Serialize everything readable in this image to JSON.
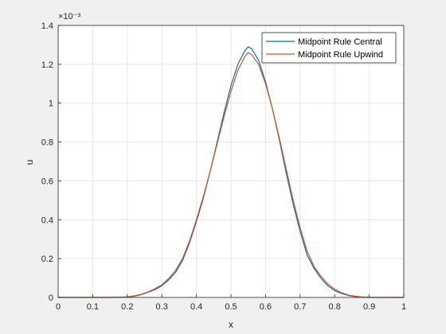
{
  "chart_data": {
    "type": "line",
    "title": "",
    "xlabel": "x",
    "ylabel": "u",
    "exponent_label": "×10⁻³",
    "xlim": [
      0,
      1
    ],
    "ylim": [
      0,
      1.4
    ],
    "y_scale_multiplier": 0.001,
    "grid": true,
    "legend_location": "top-right",
    "x_ticks": [
      "0",
      "0.1",
      "0.2",
      "0.3",
      "0.4",
      "0.5",
      "0.6",
      "0.7",
      "0.8",
      "0.9",
      "1"
    ],
    "y_ticks": [
      "0",
      "0.2",
      "0.4",
      "0.6",
      "0.8",
      "1",
      "1.2",
      "1.4"
    ],
    "x": [
      0,
      0.05,
      0.1,
      0.15,
      0.2,
      0.22,
      0.24,
      0.26,
      0.28,
      0.3,
      0.32,
      0.34,
      0.36,
      0.38,
      0.4,
      0.42,
      0.44,
      0.46,
      0.48,
      0.5,
      0.52,
      0.54,
      0.55,
      0.56,
      0.58,
      0.6,
      0.62,
      0.64,
      0.66,
      0.68,
      0.7,
      0.72,
      0.74,
      0.76,
      0.78,
      0.8,
      0.82,
      0.84,
      0.86,
      0.88,
      0.9,
      0.95,
      1
    ],
    "series": [
      {
        "name": "Midpoint Rule Central",
        "color": "#0072bd",
        "values": [
          0,
          0,
          0,
          0,
          0.002,
          0.006,
          0.014,
          0.026,
          0.04,
          0.06,
          0.09,
          0.13,
          0.19,
          0.28,
          0.39,
          0.51,
          0.65,
          0.8,
          0.95,
          1.09,
          1.2,
          1.27,
          1.29,
          1.28,
          1.22,
          1.11,
          0.97,
          0.81,
          0.64,
          0.48,
          0.34,
          0.22,
          0.15,
          0.1,
          0.06,
          0.035,
          0.02,
          0.01,
          0.004,
          0.001,
          0,
          0,
          0
        ]
      },
      {
        "name": "Midpoint Rule Upwind",
        "color": "#d95319",
        "values": [
          0,
          0,
          0,
          0,
          0.003,
          0.008,
          0.016,
          0.028,
          0.045,
          0.065,
          0.098,
          0.14,
          0.2,
          0.29,
          0.4,
          0.52,
          0.65,
          0.79,
          0.93,
          1.06,
          1.17,
          1.24,
          1.26,
          1.25,
          1.2,
          1.1,
          0.97,
          0.82,
          0.66,
          0.5,
          0.36,
          0.24,
          0.16,
          0.11,
          0.07,
          0.042,
          0.024,
          0.012,
          0.006,
          0.002,
          0.001,
          0,
          0
        ]
      }
    ]
  }
}
